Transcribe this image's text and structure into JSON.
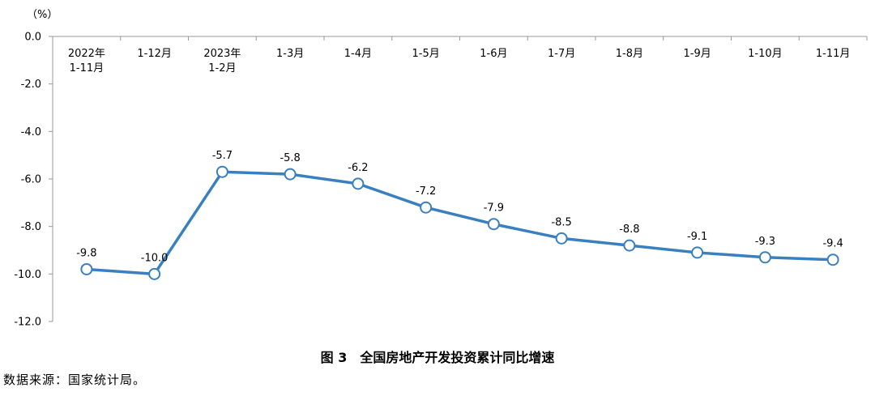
{
  "chart_data": {
    "type": "line",
    "unit_label": "（%）",
    "categories": [
      [
        "2022年",
        "1-11月"
      ],
      [
        "1-12月"
      ],
      [
        "2023年",
        "1-2月"
      ],
      [
        "1-3月"
      ],
      [
        "1-4月"
      ],
      [
        "1-5月"
      ],
      [
        "1-6月"
      ],
      [
        "1-7月"
      ],
      [
        "1-8月"
      ],
      [
        "1-9月"
      ],
      [
        "1-10月"
      ],
      [
        "1-11月"
      ]
    ],
    "values": [
      -9.8,
      -10.0,
      -5.7,
      -5.8,
      -6.2,
      -7.2,
      -7.9,
      -8.5,
      -8.8,
      -9.1,
      -9.3,
      -9.4
    ],
    "value_labels": [
      "-9.8",
      "-10.0",
      "-5.7",
      "-5.8",
      "-6.2",
      "-7.2",
      "-7.9",
      "-8.5",
      "-8.8",
      "-9.1",
      "-9.3",
      "-9.4"
    ],
    "y_ticks": [
      0,
      -2,
      -4,
      -6,
      -8,
      -10,
      -12
    ],
    "y_tick_labels": [
      "0.0",
      "-2.0",
      "-4.0",
      "-6.0",
      "-8.0",
      "-10.0",
      "-12.0"
    ],
    "ylim": [
      -12,
      0
    ],
    "line_color": "#3a80c0",
    "grid": false,
    "legend": "none"
  },
  "caption": "图 3　全国房地产开发投资累计同比增速",
  "source": "数据来源：国家统计局。"
}
